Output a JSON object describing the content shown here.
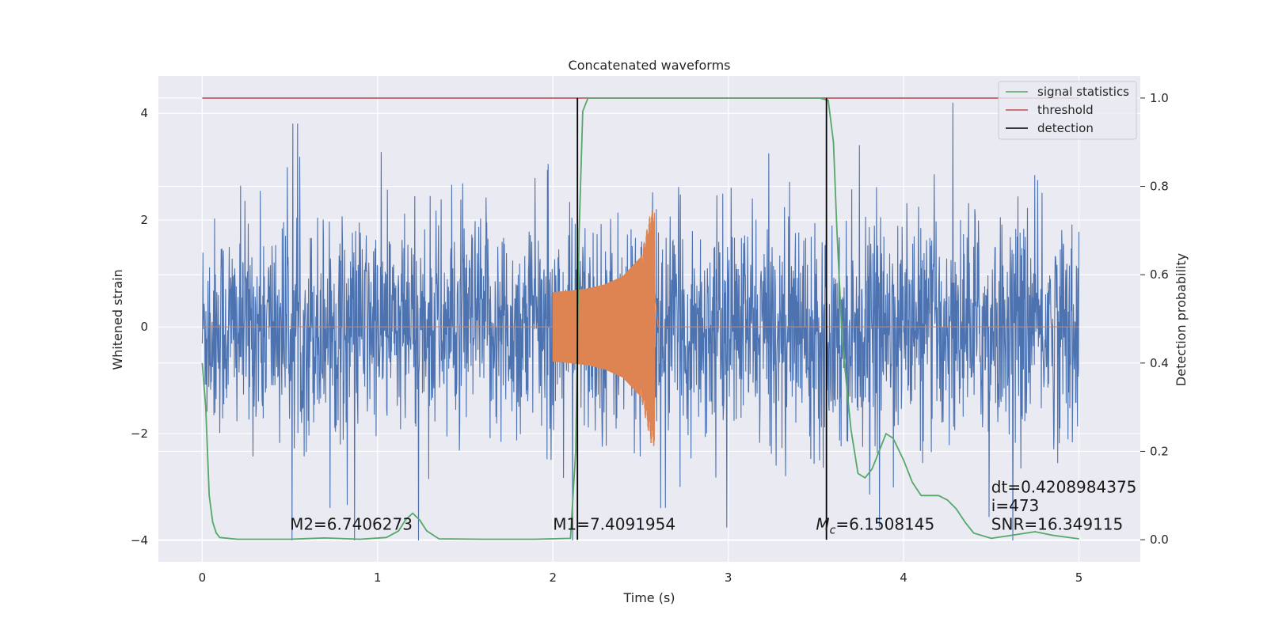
{
  "chart_data": {
    "type": "line",
    "title": "Concatenated waveforms",
    "xlabel": "Time (s)",
    "ylabel": "Whitened strain",
    "y2label": "Detection probability",
    "xlim": [
      -0.25,
      5.35
    ],
    "ylim": [
      -4.4,
      4.7
    ],
    "y2lim": [
      -0.05,
      1.05
    ],
    "xticks": [
      0,
      1,
      2,
      3,
      4,
      5
    ],
    "yticks": [
      -4,
      -2,
      0,
      2,
      4
    ],
    "yticklabels": [
      "−4",
      "−2",
      "0",
      "2",
      "4"
    ],
    "y2ticks": [
      0.0,
      0.2,
      0.4,
      0.6,
      0.8,
      1.0
    ],
    "y2ticklabels": [
      "0.0",
      "0.2",
      "0.4",
      "0.6",
      "0.8",
      "1.0"
    ],
    "grid": true,
    "legend_position": "top-right",
    "colors": {
      "background": "#eaeaf2",
      "grid": "#ffffff",
      "strain": "#4c72b0",
      "template": "#dd8452",
      "statistics": "#55a868",
      "threshold": "#c44e52",
      "detection": "#000000"
    },
    "series": [
      {
        "name": "",
        "description": "whitened strain noise",
        "axis": "left",
        "x_range": [
          0,
          5
        ],
        "typical_amplitude": 1.0,
        "peak_range": [
          -4.0,
          4.2
        ]
      },
      {
        "name": "",
        "description": "injected chirp template",
        "axis": "left",
        "x_range": [
          2.0,
          2.58
        ],
        "envelope": {
          "x": [
            2.0,
            2.1,
            2.2,
            2.3,
            2.4,
            2.5,
            2.56,
            2.58
          ],
          "amplitude": [
            0.65,
            0.68,
            0.72,
            0.8,
            0.95,
            1.3,
            2.2,
            2.25
          ]
        }
      },
      {
        "name": "signal statistics",
        "axis": "right",
        "x": [
          0.0,
          0.02,
          0.04,
          0.06,
          0.08,
          0.1,
          0.2,
          0.5,
          0.7,
          0.9,
          1.05,
          1.12,
          1.16,
          1.2,
          1.24,
          1.28,
          1.35,
          1.6,
          1.9,
          2.1,
          2.13,
          2.15,
          2.17,
          2.2,
          2.3,
          2.5,
          3.0,
          3.4,
          3.52,
          3.57,
          3.6,
          3.62,
          3.65,
          3.7,
          3.74,
          3.78,
          3.82,
          3.86,
          3.9,
          3.94,
          4.0,
          4.05,
          4.1,
          4.15,
          4.2,
          4.25,
          4.3,
          4.35,
          4.4,
          4.5,
          4.65,
          4.75,
          4.85,
          5.0
        ],
        "y": [
          0.4,
          0.3,
          0.1,
          0.04,
          0.015,
          0.005,
          0.001,
          0.001,
          0.004,
          0.001,
          0.005,
          0.02,
          0.045,
          0.06,
          0.045,
          0.02,
          0.002,
          0.001,
          0.001,
          0.003,
          0.2,
          0.7,
          0.97,
          1.0,
          1.0,
          1.0,
          1.0,
          1.0,
          1.0,
          0.995,
          0.9,
          0.7,
          0.45,
          0.25,
          0.15,
          0.14,
          0.16,
          0.2,
          0.24,
          0.23,
          0.18,
          0.13,
          0.1,
          0.1,
          0.1,
          0.09,
          0.07,
          0.04,
          0.015,
          0.003,
          0.012,
          0.018,
          0.01,
          0.002
        ]
      },
      {
        "name": "threshold",
        "axis": "right",
        "x": [
          0,
          5
        ],
        "y": [
          1.0,
          1.0
        ]
      },
      {
        "name": "detection",
        "axis": "right",
        "x_positions": [
          2.14,
          3.56
        ],
        "y": [
          0.0,
          1.0
        ]
      }
    ],
    "annotations": [
      {
        "text": "M2=6.7406273",
        "x": 0.5,
        "y": -3.8
      },
      {
        "text": "M1=7.4091954",
        "x": 2.0,
        "y": -3.8
      },
      {
        "text": "M",
        "sub": "c",
        "rest": "=6.1508145",
        "x": 3.5,
        "y": -3.8
      },
      {
        "text": "dt=0.4208984375",
        "x": 4.5,
        "y": -3.1
      },
      {
        "text": " i=473",
        "x": 4.5,
        "y": -3.45
      },
      {
        "text": "SNR=16.349115",
        "x": 4.5,
        "y": -3.8
      }
    ]
  }
}
